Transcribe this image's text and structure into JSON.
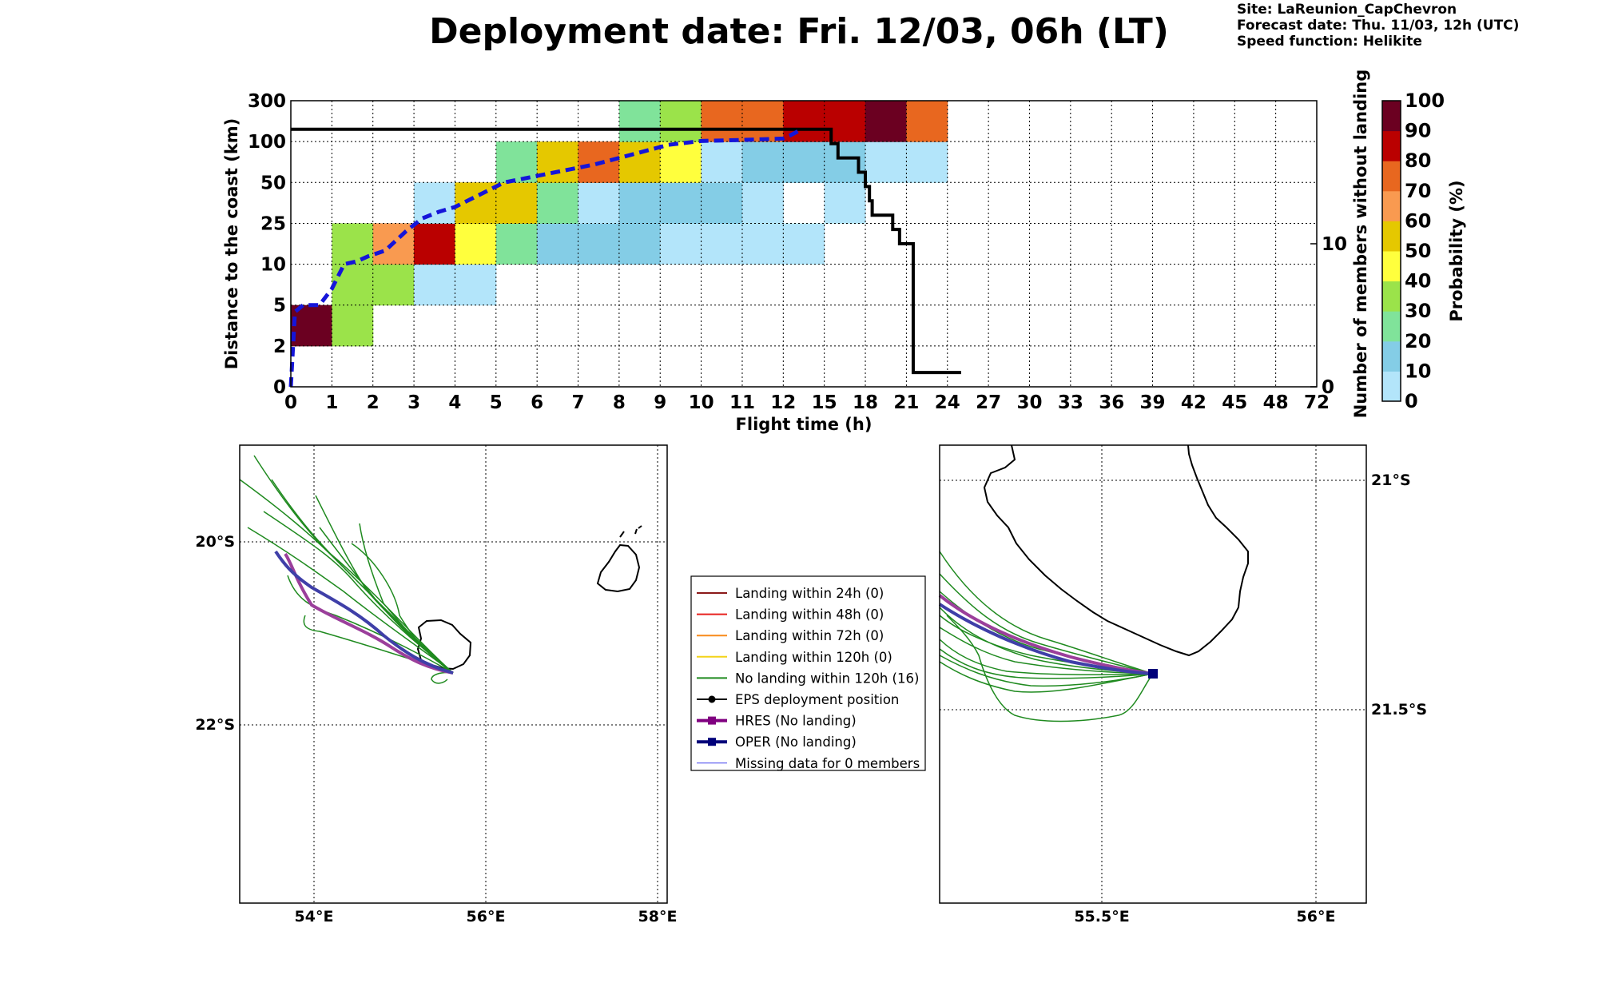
{
  "header": {
    "title": "Deployment date: Fri. 12/03, 06h (LT)",
    "site": "Site: LaReunion_CapChevron",
    "forecast": "Forecast date: Thu. 11/03, 12h (UTC)",
    "speed": "Speed function: Helikite"
  },
  "colors": {
    "0": "#b3e5fa",
    "10": "#84cde6",
    "20": "#80e39a",
    "30": "#9be34a",
    "40": "#ffff3d",
    "50": "#e5c800",
    "60": "#f99a50",
    "70": "#e8671f",
    "80": "#ba0000",
    "90": "#6b0021"
  },
  "chart_data": [
    {
      "type": "heatmap",
      "xlabel": "Flight time (h)",
      "ylabel": "Distance to the coast (km)",
      "y2label": "Number of members without landing",
      "x_ticks": [
        "0",
        "1",
        "2",
        "3",
        "4",
        "5",
        "6",
        "7",
        "8",
        "9",
        "10",
        "11",
        "12",
        "15",
        "18",
        "21",
        "24",
        "27",
        "30",
        "33",
        "36",
        "39",
        "42",
        "45",
        "48",
        "72"
      ],
      "y_ticks": [
        "0",
        "2",
        "5",
        "10",
        "25",
        "50",
        "100",
        "300"
      ],
      "y2_ticks": [
        "0",
        "10"
      ],
      "y2_lim": [
        0,
        20
      ],
      "grid": true,
      "colorbar": {
        "label": "Probability (%)",
        "ticks": [
          "0",
          "10",
          "20",
          "30",
          "40",
          "50",
          "60",
          "70",
          "80",
          "90",
          "100"
        ]
      },
      "cells": [
        {
          "x": 0,
          "y": 1,
          "p": "90"
        },
        {
          "x": 1,
          "y": 1,
          "p": "30"
        },
        {
          "x": 1,
          "y": 2,
          "p": "30"
        },
        {
          "x": 1,
          "y": 3,
          "p": "30"
        },
        {
          "x": 2,
          "y": 2,
          "p": "30"
        },
        {
          "x": 2,
          "y": 3,
          "p": "60"
        },
        {
          "x": 3,
          "y": 2,
          "p": "0"
        },
        {
          "x": 3,
          "y": 3,
          "p": "80"
        },
        {
          "x": 3,
          "y": 4,
          "p": "0"
        },
        {
          "x": 4,
          "y": 2,
          "p": "0"
        },
        {
          "x": 4,
          "y": 3,
          "p": "40"
        },
        {
          "x": 4,
          "y": 4,
          "p": "50"
        },
        {
          "x": 5,
          "y": 3,
          "p": "20"
        },
        {
          "x": 5,
          "y": 4,
          "p": "50"
        },
        {
          "x": 5,
          "y": 5,
          "p": "20"
        },
        {
          "x": 6,
          "y": 3,
          "p": "10"
        },
        {
          "x": 6,
          "y": 4,
          "p": "20"
        },
        {
          "x": 6,
          "y": 5,
          "p": "50"
        },
        {
          "x": 7,
          "y": 3,
          "p": "10"
        },
        {
          "x": 7,
          "y": 4,
          "p": "0"
        },
        {
          "x": 7,
          "y": 5,
          "p": "70"
        },
        {
          "x": 8,
          "y": 3,
          "p": "10"
        },
        {
          "x": 8,
          "y": 4,
          "p": "10"
        },
        {
          "x": 8,
          "y": 5,
          "p": "50"
        },
        {
          "x": 8,
          "y": 6,
          "p": "20"
        },
        {
          "x": 9,
          "y": 3,
          "p": "0"
        },
        {
          "x": 9,
          "y": 4,
          "p": "10"
        },
        {
          "x": 9,
          "y": 5,
          "p": "40"
        },
        {
          "x": 9,
          "y": 6,
          "p": "30"
        },
        {
          "x": 10,
          "y": 3,
          "p": "0"
        },
        {
          "x": 10,
          "y": 4,
          "p": "10"
        },
        {
          "x": 10,
          "y": 5,
          "p": "0"
        },
        {
          "x": 10,
          "y": 6,
          "p": "70"
        },
        {
          "x": 11,
          "y": 3,
          "p": "0"
        },
        {
          "x": 11,
          "y": 4,
          "p": "0"
        },
        {
          "x": 11,
          "y": 5,
          "p": "10"
        },
        {
          "x": 11,
          "y": 6,
          "p": "70"
        },
        {
          "x": 12,
          "y": 3,
          "p": "0"
        },
        {
          "x": 12,
          "y": 5,
          "p": "10"
        },
        {
          "x": 12,
          "y": 6,
          "p": "80"
        },
        {
          "x": 13,
          "y": 4,
          "p": "0"
        },
        {
          "x": 13,
          "y": 5,
          "p": "10"
        },
        {
          "x": 13,
          "y": 6,
          "p": "80"
        },
        {
          "x": 14,
          "y": 5,
          "p": "0"
        },
        {
          "x": 14,
          "y": 6,
          "p": "90"
        },
        {
          "x": 15,
          "y": 5,
          "p": "0"
        },
        {
          "x": 15,
          "y": 6,
          "p": "70"
        }
      ],
      "members_without_landing": {
        "x": [
          0,
          15.3,
          15.5,
          16,
          17.5,
          18,
          18.3,
          18.5,
          19,
          20,
          20.5,
          21,
          21.5,
          25
        ],
        "y": [
          18,
          18,
          17,
          16,
          15,
          14,
          13,
          12,
          12,
          11,
          10,
          10,
          1,
          1
        ]
      },
      "median_distance": {
        "x": [
          0,
          0.1,
          0.3,
          0.7,
          1,
          1.3,
          1.6,
          1.9,
          2.3,
          2.8,
          3.2,
          3.6,
          4,
          4.4,
          4.8,
          5.2,
          5.7,
          6.2,
          6.8,
          7.4,
          8,
          8.6,
          9.2,
          10,
          11,
          12,
          12.5,
          13.2
        ],
        "y": [
          0,
          4.5,
          5,
          5,
          7,
          10,
          11,
          13,
          15,
          22,
          28,
          32,
          35,
          40,
          45,
          50,
          55,
          60,
          66,
          72,
          80,
          88,
          96,
          103,
          108,
          115,
          130,
          155
        ]
      }
    },
    {
      "type": "scatter",
      "subtype": "trajectory-map",
      "x_ticks": [
        "54°E",
        "56°E",
        "58°E"
      ],
      "y_ticks": [
        "20°S",
        "22°S"
      ]
    },
    {
      "type": "scatter",
      "subtype": "trajectory-map",
      "x_ticks": [
        "55.5°E",
        "56°E"
      ],
      "y_ticks": [
        "21°S",
        "21.5°S"
      ]
    }
  ],
  "legend": {
    "items": [
      {
        "label": "Landing within 24h (0)",
        "color": "#8b1a1a",
        "marker": "none",
        "width": 2
      },
      {
        "label": "Landing within 48h (0)",
        "color": "#e8201e",
        "marker": "none",
        "width": 2
      },
      {
        "label": "Landing within 72h (0)",
        "color": "#f88a1a",
        "marker": "none",
        "width": 2
      },
      {
        "label": "Landing within 120h (0)",
        "color": "#f4d31a",
        "marker": "none",
        "width": 2
      },
      {
        "label": "No landing within 120h (16)",
        "color": "#1f8a1f",
        "marker": "none",
        "width": 2
      },
      {
        "label": "EPS deployment position",
        "color": "#000000",
        "marker": "circle",
        "width": 2
      },
      {
        "label": "HRES (No landing)",
        "color": "#800080",
        "marker": "square",
        "width": 4
      },
      {
        "label": "OPER (No landing)",
        "color": "#00007a",
        "marker": "square",
        "width": 4
      },
      {
        "label": "Missing data for 0 members",
        "color": "#4444ee",
        "marker": "none",
        "width": 1
      }
    ]
  }
}
